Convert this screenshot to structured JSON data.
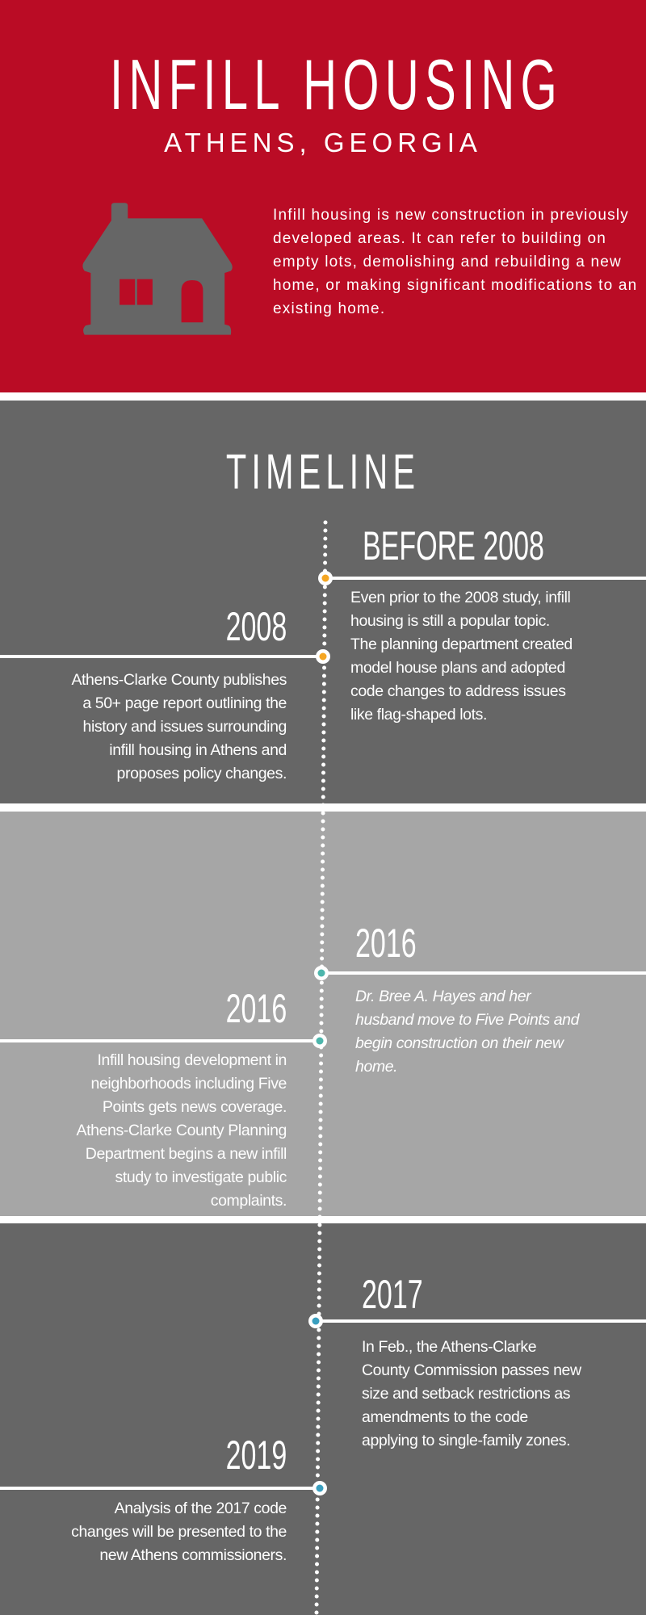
{
  "header": {
    "title": "INFILL HOUSING",
    "subtitle": "ATHENS, GEORGIA",
    "icon": "house-icon",
    "description": "Infill housing is new construction in previously developed areas. It can refer to building on empty lots, demolishing and rebuilding a new home, or making significant modifications to an existing home."
  },
  "timeline": {
    "title": "TIMELINE",
    "entries": [
      {
        "year": "BEFORE 2008",
        "side": "right",
        "dot_color": "#F5A623",
        "lines": [
          "Even prior to the 2008 study, infill",
          "housing is still a popular topic.",
          "The planning department created",
          "model house plans and adopted",
          "code changes to address issues",
          "like flag-shaped lots."
        ]
      },
      {
        "year": "2008",
        "side": "left",
        "dot_color": "#F5A623",
        "lines": [
          "Athens-Clarke County publishes",
          "a 50+ page report outlining the",
          "history and issues surrounding",
          "infill housing in Athens and",
          "proposes policy changes."
        ]
      },
      {
        "year": "2016",
        "side": "right",
        "dot_color": "#4DB6AC",
        "italic": true,
        "lines": [
          "Dr. Bree A. Hayes and her",
          "husband move to Five Points and",
          "begin construction on their new",
          "home."
        ]
      },
      {
        "year": "2016",
        "side": "left",
        "dot_color": "#4DB6AC",
        "lines": [
          "Infill housing development in",
          "neighborhoods including Five",
          "Points gets news coverage.",
          "Athens-Clarke County Planning",
          "Department begins a new infill",
          "study to investigate public",
          "complaints."
        ]
      },
      {
        "year": "2017",
        "side": "right",
        "dot_color": "#3A9FBF",
        "lines": [
          "In Feb., the Athens-Clarke",
          "County Commission passes new",
          "size and setback restrictions as",
          "amendments to the code",
          "applying to single-family zones."
        ]
      },
      {
        "year": "2019",
        "side": "left",
        "dot_color": "#3A9FBF",
        "lines": [
          "Analysis of the 2017 code",
          "changes will be presented to the",
          "new Athens commissioners."
        ]
      }
    ]
  },
  "colors": {
    "header_bg": "#BA0C25",
    "dark_band": "#666666",
    "light_band": "#A6A6A6",
    "house": "#666666"
  }
}
